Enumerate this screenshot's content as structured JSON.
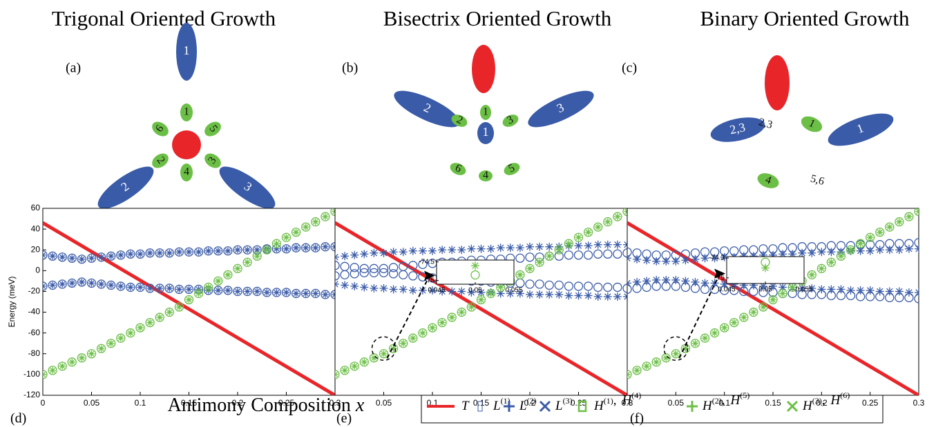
{
  "diagrams": [
    {
      "label": "(a)",
      "title": "Trigonal Oriented Growth",
      "labels": [
        "1",
        "2",
        "3",
        "1",
        "6",
        "5",
        "2",
        "3",
        "4"
      ]
    },
    {
      "label": "(b)",
      "title": "Bisectrix Oriented Growth",
      "labels": [
        "2",
        "3",
        "1",
        "2",
        "3",
        "1",
        "6",
        "4",
        "5"
      ]
    },
    {
      "label": "(c)",
      "title": "Binary Oriented Growth",
      "labels": [
        "2,3",
        "1",
        "2,3",
        "1",
        "4",
        "5,6"
      ]
    }
  ],
  "xlabel": {
    "text": "Antimony Composition",
    "var": "x"
  },
  "legend": {
    "separator": ",",
    "entries": [
      {
        "marker": "line",
        "color": "#e8262a",
        "terms": [
          {
            "base": "T"
          }
        ]
      },
      {
        "marker": "square",
        "color": "#3a5ba8",
        "terms": [
          {
            "base": "L",
            "sup": "(1)"
          }
        ]
      },
      {
        "marker": "plus",
        "color": "#3a5ba8",
        "terms": [
          {
            "base": "L",
            "sup": "(2)"
          }
        ]
      },
      {
        "marker": "cross",
        "color": "#3a5ba8",
        "terms": [
          {
            "base": "L",
            "sup": "(3)"
          }
        ]
      },
      {
        "marker": "square",
        "color": "#6cbf46",
        "terms": [
          {
            "base": "H",
            "sup": "(1)"
          },
          {
            "base": "H",
            "sup": "(4)"
          }
        ]
      },
      {
        "marker": "plus",
        "color": "#6cbf46",
        "terms": [
          {
            "base": "H",
            "sup": "(2)"
          },
          {
            "base": "H",
            "sup": "(5)"
          }
        ]
      },
      {
        "marker": "cross",
        "color": "#6cbf46",
        "terms": [
          {
            "base": "H",
            "sup": "(3)"
          },
          {
            "base": "H",
            "sup": "(6)"
          }
        ]
      }
    ]
  },
  "chart_data": [
    {
      "type": "scatter",
      "panel_label": "(d)",
      "ylabel": "Energy (meV)",
      "x": [
        0,
        0.01,
        0.02,
        0.03,
        0.04,
        0.05,
        0.06,
        0.07,
        0.08,
        0.09,
        0.1,
        0.11,
        0.12,
        0.13,
        0.14,
        0.15,
        0.16,
        0.17,
        0.18,
        0.19,
        0.2,
        0.21,
        0.22,
        0.23,
        0.24,
        0.25,
        0.26,
        0.27,
        0.28,
        0.29,
        0.3
      ],
      "xlim": [
        0,
        0.3
      ],
      "xticks": [
        0,
        0.05,
        0.1,
        0.15,
        0.2,
        0.25,
        0.3
      ],
      "ylim": [
        -120,
        60
      ],
      "yticks": [
        60,
        40,
        20,
        0,
        -20,
        -40,
        -60,
        -80,
        -100,
        -120
      ],
      "series": [
        {
          "marker": "line",
          "color": "#e8262a",
          "x": [
            0,
            0.3
          ],
          "values": [
            46,
            -120
          ]
        },
        {
          "marker": "circlestar",
          "color": "#3a5ba8",
          "values": [
            15,
            14,
            13,
            12,
            11,
            12,
            13,
            14,
            15,
            16,
            16,
            17,
            17,
            17,
            18,
            18,
            18,
            19,
            19,
            19,
            20,
            20,
            20,
            21,
            21,
            21,
            22,
            22,
            22,
            23,
            23
          ]
        },
        {
          "marker": "circlestar",
          "color": "#3a5ba8",
          "values": [
            -15,
            -14,
            -13,
            -12,
            -11,
            -12,
            -13,
            -14,
            -15,
            -16,
            -16,
            -17,
            -17,
            -17,
            -18,
            -18,
            -18,
            -19,
            -19,
            -19,
            -20,
            -20,
            -20,
            -21,
            -21,
            -21,
            -22,
            -22,
            -22,
            -23,
            -23
          ]
        },
        {
          "marker": "circlestar",
          "color": "#6cbf46",
          "values": [
            -100,
            -96,
            -92,
            -88,
            -84,
            -80,
            -75,
            -70,
            -65,
            -60,
            -55,
            -50,
            -45,
            -40,
            -35,
            -28,
            -22,
            -16,
            -10,
            -4,
            2,
            8,
            14,
            20,
            26,
            32,
            37,
            42,
            47,
            52,
            57
          ]
        }
      ]
    },
    {
      "type": "scatter",
      "panel_label": "(e)",
      "x": [
        0,
        0.01,
        0.02,
        0.03,
        0.04,
        0.05,
        0.06,
        0.07,
        0.08,
        0.09,
        0.1,
        0.11,
        0.12,
        0.13,
        0.14,
        0.15,
        0.16,
        0.17,
        0.18,
        0.19,
        0.2,
        0.21,
        0.22,
        0.23,
        0.24,
        0.25,
        0.26,
        0.27,
        0.28,
        0.29,
        0.3
      ],
      "xlim": [
        0,
        0.3
      ],
      "xticks": [
        0.05,
        0.1,
        0.15,
        0.2,
        0.25,
        0.3
      ],
      "ylim": [
        -120,
        60
      ],
      "series": [
        {
          "marker": "line",
          "color": "#e8262a",
          "x": [
            0,
            0.3
          ],
          "values": [
            46,
            -120
          ]
        },
        {
          "marker": "star",
          "color": "#3a5ba8",
          "values": [
            13,
            14,
            15,
            16,
            17,
            17,
            18,
            18,
            19,
            19,
            19,
            20,
            20,
            20,
            21,
            21,
            21,
            22,
            22,
            22,
            23,
            23,
            23,
            23,
            24,
            24,
            24,
            25,
            25,
            25,
            25
          ]
        },
        {
          "marker": "circle",
          "color": "#3a5ba8",
          "values": [
            5,
            4,
            3,
            2,
            2,
            2,
            3,
            4,
            5,
            6,
            7,
            8,
            8,
            9,
            10,
            10,
            11,
            11,
            12,
            12,
            13,
            13,
            14,
            14,
            15,
            15,
            15,
            16,
            16,
            16,
            17
          ]
        },
        {
          "marker": "circle",
          "color": "#3a5ba8",
          "values": [
            -5,
            -4,
            -3,
            -2,
            -2,
            -2,
            -3,
            -4,
            -5,
            -6,
            -7,
            -8,
            -8,
            -9,
            -10,
            -10,
            -11,
            -11,
            -12,
            -12,
            -13,
            -13,
            -14,
            -14,
            -15,
            -15,
            -15,
            -16,
            -16,
            -16,
            -17
          ]
        },
        {
          "marker": "star",
          "color": "#3a5ba8",
          "values": [
            -13,
            -14,
            -15,
            -16,
            -17,
            -17,
            -18,
            -18,
            -19,
            -19,
            -19,
            -20,
            -20,
            -20,
            -21,
            -21,
            -21,
            -22,
            -22,
            -22,
            -23,
            -23,
            -23,
            -23,
            -24,
            -24,
            -24,
            -25,
            -25,
            -25,
            -25
          ]
        },
        {
          "marker": "circlestar",
          "color": "#6cbf46",
          "values": [
            -100,
            -96,
            -92,
            -88,
            -84,
            -80,
            -75,
            -70,
            -65,
            -60,
            -55,
            -50,
            -45,
            -40,
            -35,
            -28,
            -22,
            -16,
            -10,
            -4,
            2,
            8,
            14,
            20,
            26,
            32,
            37,
            42,
            47,
            52,
            57
          ]
        }
      ],
      "inset": {
        "xlim": [
          0.045,
          0.055
        ],
        "xticks": [
          0.045,
          0.05,
          0.055
        ],
        "ylim": [
          -75.1,
          -74.45
        ],
        "yticks": [
          -74.5,
          -75
        ],
        "series": [
          {
            "marker": "star",
            "color": "#6cbf46",
            "x": [
              0.05
            ],
            "values": [
              -74.6
            ]
          },
          {
            "marker": "circle",
            "color": "#6cbf46",
            "x": [
              0.05
            ],
            "values": [
              -74.85
            ]
          }
        ]
      }
    },
    {
      "type": "scatter",
      "panel_label": "(f)",
      "x": [
        0,
        0.01,
        0.02,
        0.03,
        0.04,
        0.05,
        0.06,
        0.07,
        0.08,
        0.09,
        0.1,
        0.11,
        0.12,
        0.13,
        0.14,
        0.15,
        0.16,
        0.17,
        0.18,
        0.19,
        0.2,
        0.21,
        0.22,
        0.23,
        0.24,
        0.25,
        0.26,
        0.27,
        0.28,
        0.29,
        0.3
      ],
      "xlim": [
        0,
        0.3
      ],
      "xticks": [
        0.05,
        0.1,
        0.15,
        0.2,
        0.25,
        0.3
      ],
      "ylim": [
        -120,
        60
      ],
      "series": [
        {
          "marker": "line",
          "color": "#e8262a",
          "x": [
            0,
            0.3
          ],
          "values": [
            46,
            -120
          ]
        },
        {
          "marker": "circle",
          "color": "#3a5ba8",
          "values": [
            18,
            17,
            16,
            15,
            15,
            15,
            16,
            17,
            18,
            18,
            19,
            19,
            20,
            20,
            21,
            21,
            22,
            22,
            23,
            23,
            23,
            24,
            24,
            24,
            25,
            25,
            25,
            26,
            26,
            26,
            27
          ]
        },
        {
          "marker": "star",
          "color": "#3a5ba8",
          "values": [
            12,
            11,
            10,
            9,
            9,
            9,
            10,
            11,
            12,
            12,
            13,
            13,
            14,
            14,
            15,
            15,
            16,
            16,
            17,
            17,
            18,
            18,
            18,
            19,
            19,
            19,
            20,
            20,
            20,
            21,
            21
          ]
        },
        {
          "marker": "star",
          "color": "#3a5ba8",
          "values": [
            -12,
            -11,
            -10,
            -9,
            -9,
            -9,
            -10,
            -11,
            -12,
            -12,
            -13,
            -13,
            -14,
            -14,
            -15,
            -15,
            -16,
            -16,
            -17,
            -17,
            -18,
            -18,
            -18,
            -19,
            -19,
            -19,
            -20,
            -20,
            -20,
            -21,
            -21
          ]
        },
        {
          "marker": "circle",
          "color": "#3a5ba8",
          "values": [
            -18,
            -17,
            -16,
            -15,
            -15,
            -15,
            -16,
            -17,
            -18,
            -18,
            -19,
            -19,
            -20,
            -20,
            -21,
            -21,
            -22,
            -22,
            -23,
            -23,
            -23,
            -24,
            -24,
            -24,
            -25,
            -25,
            -25,
            -26,
            -26,
            -26,
            -27
          ]
        },
        {
          "marker": "circlestar",
          "color": "#6cbf46",
          "values": [
            -100,
            -96,
            -92,
            -88,
            -84,
            -80,
            -75,
            -70,
            -65,
            -60,
            -55,
            -50,
            -45,
            -40,
            -35,
            -28,
            -22,
            -16,
            -10,
            -4,
            2,
            8,
            14,
            20,
            26,
            32,
            37,
            42,
            47,
            52,
            57
          ]
        }
      ],
      "inset": {
        "xlim": [
          0.045,
          0.055
        ],
        "xticks": [
          0.045,
          0.05,
          0.055
        ],
        "ylim": [
          -75.2,
          -74.25
        ],
        "yticks": [
          -74.3,
          -75
        ],
        "series": [
          {
            "marker": "circle",
            "color": "#6cbf46",
            "x": [
              0.05
            ],
            "values": [
              -74.45
            ]
          },
          {
            "marker": "star",
            "color": "#6cbf46",
            "x": [
              0.05
            ],
            "values": [
              -74.65
            ]
          }
        ]
      }
    }
  ]
}
